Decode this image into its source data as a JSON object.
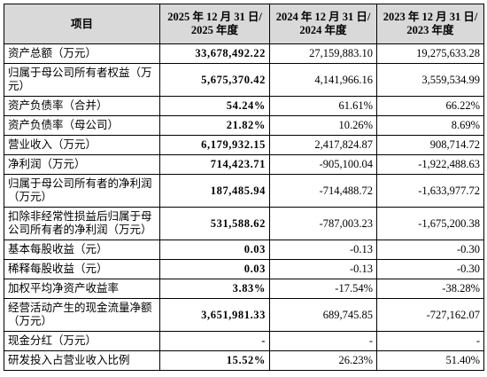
{
  "table": {
    "header": [
      [
        "项目"
      ],
      [
        "2025 年 12 月 31 日/",
        "2025 年度"
      ],
      [
        "2024 年 12 月 31 日/",
        "2024 年度"
      ],
      [
        "2023 年 12 月 31 日/",
        "2023 年度"
      ]
    ],
    "rows": [
      [
        "资产总额（万元）",
        "33,678,492.22",
        "27,159,883.10",
        "19,275,633.28"
      ],
      [
        "归属于母公司所有者权益（万元）",
        "5,675,370.42",
        "4,141,966.16",
        "3,559,534.99"
      ],
      [
        "资产负债率（合并）",
        "54.24%",
        "61.61%",
        "66.22%"
      ],
      [
        "资产负债率（母公司）",
        "21.82%",
        "10.26%",
        "8.69%"
      ],
      [
        "营业收入（万元）",
        "6,179,932.15",
        "2,417,824.87",
        "908,714.72"
      ],
      [
        "净利润（万元）",
        "714,423.71",
        "-905,100.04",
        "-1,922,488.63"
      ],
      [
        "归属于母公司所有者的净利润（万元）",
        "187,485.94",
        "-714,488.72",
        "-1,633,977.72"
      ],
      [
        "扣除非经常性损益后归属于母公司所有者的净利润（万元）",
        "531,588.62",
        "-787,003.23",
        "-1,675,200.38"
      ],
      [
        "基本每股收益（元）",
        "0.03",
        "-0.13",
        "-0.30"
      ],
      [
        "稀释每股收益（元）",
        "0.03",
        "-0.13",
        "-0.30"
      ],
      [
        "加权平均净资产收益率",
        "3.83%",
        "-17.54%",
        "-38.28%"
      ],
      [
        "经营活动产生的现金流量净额（万元）",
        "3,651,981.33",
        "689,745.85",
        "-727,162.07"
      ],
      [
        "现金分红（万元）",
        "-",
        "-",
        "-"
      ],
      [
        "研发投入占营业收入比例",
        "15.52%",
        "26.23%",
        "51.40%"
      ]
    ]
  }
}
